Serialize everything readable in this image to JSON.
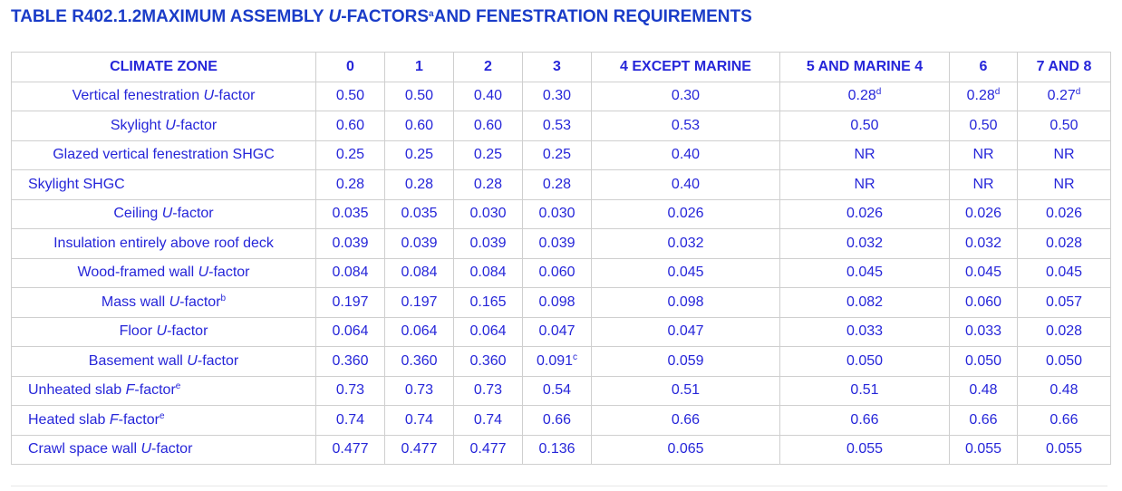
{
  "title": [
    {
      "t": "TABLE R402.1.2MAXIMUM ASSEMBLY "
    },
    {
      "t": "U",
      "i": true
    },
    {
      "t": "-FACTORS"
    },
    {
      "t": "a",
      "sup": true
    },
    {
      "t": "AND FENESTRATION REQUIREMENTS"
    }
  ],
  "table": {
    "header": [
      "CLIMATE ZONE",
      "0",
      "1",
      "2",
      "3",
      "4 EXCEPT MARINE",
      "5 AND MARINE 4",
      "6",
      "7 AND 8"
    ],
    "rows": [
      {
        "label": [
          {
            "t": "Vertical fenestration "
          },
          {
            "t": "U",
            "i": true
          },
          {
            "t": "-factor"
          }
        ],
        "values": [
          "0.50",
          "0.50",
          "0.40",
          "0.30",
          "0.30",
          [
            {
              "t": "0.28"
            },
            {
              "t": "d",
              "sup": true
            }
          ],
          [
            {
              "t": "0.28"
            },
            {
              "t": "d",
              "sup": true
            }
          ],
          [
            {
              "t": "0.27"
            },
            {
              "t": "d",
              "sup": true
            }
          ]
        ]
      },
      {
        "label": [
          {
            "t": "Skylight "
          },
          {
            "t": "U",
            "i": true
          },
          {
            "t": "-factor"
          }
        ],
        "values": [
          "0.60",
          "0.60",
          "0.60",
          "0.53",
          "0.53",
          "0.50",
          "0.50",
          "0.50"
        ]
      },
      {
        "label": [
          {
            "t": "Glazed vertical fenestration SHGC"
          }
        ],
        "values": [
          "0.25",
          "0.25",
          "0.25",
          "0.25",
          "0.40",
          "NR",
          "NR",
          "NR"
        ]
      },
      {
        "label": [
          {
            "t": "Skylight SHGC"
          }
        ],
        "align": "left",
        "values": [
          "0.28",
          "0.28",
          "0.28",
          "0.28",
          "0.40",
          "NR",
          "NR",
          "NR"
        ]
      },
      {
        "label": [
          {
            "t": "Ceiling "
          },
          {
            "t": "U",
            "i": true
          },
          {
            "t": "-factor"
          }
        ],
        "values": [
          "0.035",
          "0.035",
          "0.030",
          "0.030",
          "0.026",
          "0.026",
          "0.026",
          "0.026"
        ]
      },
      {
        "label": [
          {
            "t": "Insulation entirely above roof deck"
          }
        ],
        "values": [
          "0.039",
          "0.039",
          "0.039",
          "0.039",
          "0.032",
          "0.032",
          "0.032",
          "0.028"
        ]
      },
      {
        "label": [
          {
            "t": "Wood-framed wall "
          },
          {
            "t": "U",
            "i": true
          },
          {
            "t": "-factor"
          }
        ],
        "values": [
          "0.084",
          "0.084",
          "0.084",
          "0.060",
          "0.045",
          "0.045",
          "0.045",
          "0.045"
        ]
      },
      {
        "label": [
          {
            "t": "Mass wall "
          },
          {
            "t": "U",
            "i": true
          },
          {
            "t": "-factor"
          },
          {
            "t": "b",
            "sup": true
          }
        ],
        "values": [
          "0.197",
          "0.197",
          "0.165",
          "0.098",
          "0.098",
          "0.082",
          "0.060",
          "0.057"
        ]
      },
      {
        "label": [
          {
            "t": "Floor "
          },
          {
            "t": "U",
            "i": true
          },
          {
            "t": "-factor"
          }
        ],
        "values": [
          "0.064",
          "0.064",
          "0.064",
          "0.047",
          "0.047",
          "0.033",
          "0.033",
          "0.028"
        ]
      },
      {
        "label": [
          {
            "t": "Basement wall "
          },
          {
            "t": "U",
            "i": true
          },
          {
            "t": "-factor"
          }
        ],
        "values": [
          "0.360",
          "0.360",
          "0.360",
          [
            {
              "t": "0.091"
            },
            {
              "t": "c",
              "sup": true
            }
          ],
          "0.059",
          "0.050",
          "0.050",
          "0.050"
        ]
      },
      {
        "label": [
          {
            "t": "Unheated slab "
          },
          {
            "t": "F",
            "i": true
          },
          {
            "t": "-factor"
          },
          {
            "t": "e",
            "sup": true
          }
        ],
        "align": "left",
        "values": [
          "0.73",
          "0.73",
          "0.73",
          "0.54",
          "0.51",
          "0.51",
          "0.48",
          "0.48"
        ]
      },
      {
        "label": [
          {
            "t": "Heated slab "
          },
          {
            "t": "F",
            "i": true
          },
          {
            "t": "-factor"
          },
          {
            "t": "e",
            "sup": true
          }
        ],
        "align": "left",
        "values": [
          "0.74",
          "0.74",
          "0.74",
          "0.66",
          "0.66",
          "0.66",
          "0.66",
          "0.66"
        ]
      },
      {
        "label": [
          {
            "t": "Crawl space wall "
          },
          {
            "t": "U",
            "i": true
          },
          {
            "t": "-factor"
          }
        ],
        "align": "left",
        "values": [
          "0.477",
          "0.477",
          "0.477",
          "0.136",
          "0.065",
          "0.055",
          "0.055",
          "0.055"
        ]
      }
    ]
  }
}
